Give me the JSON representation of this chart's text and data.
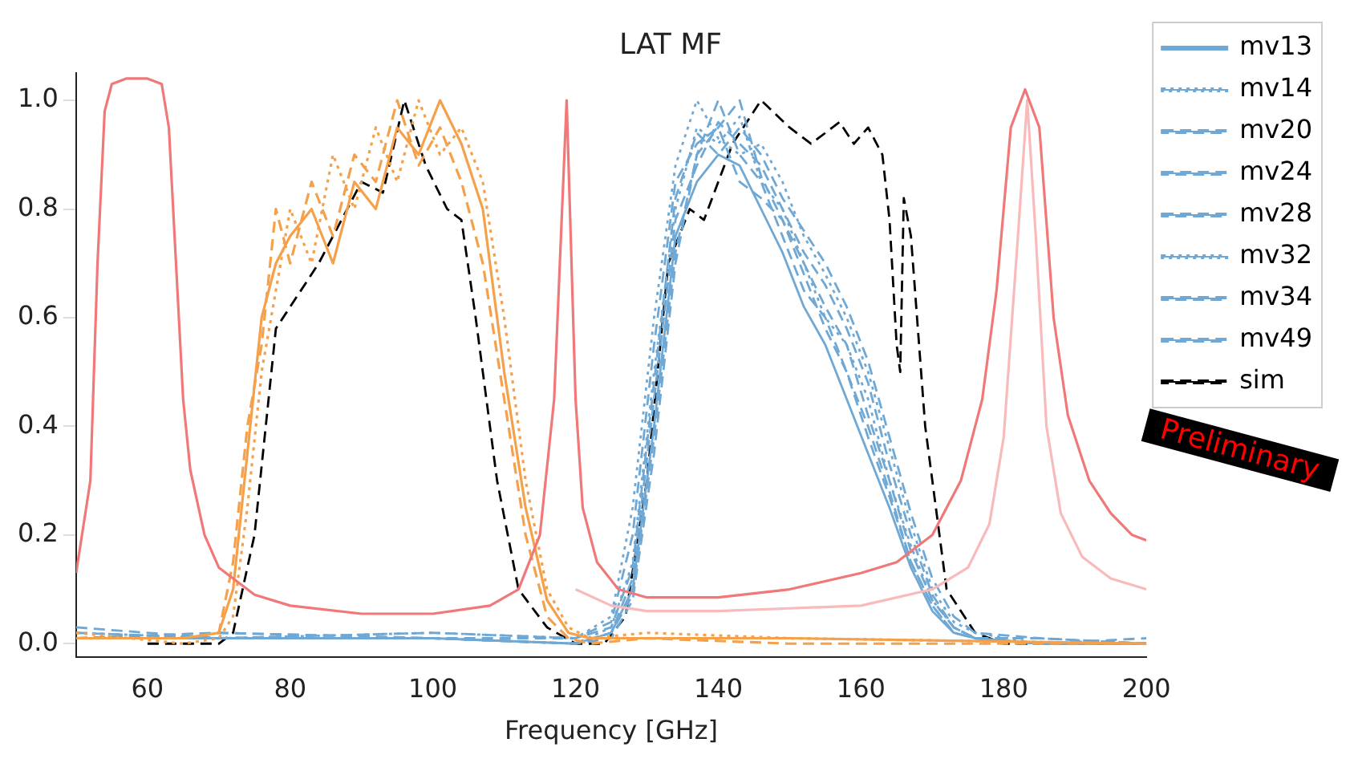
{
  "chart_data": {
    "type": "line",
    "title": "LAT MF",
    "xlabel": "Frequency [GHz]",
    "annotations": [
      "Preliminary"
    ],
    "xlim": [
      50,
      200
    ],
    "xticks": [
      60,
      80,
      100,
      120,
      140,
      160,
      180,
      200
    ],
    "ylim": [
      -0.025,
      1.05
    ],
    "yticks": [
      {
        "value": 0,
        "label": "0.0"
      },
      {
        "value": 0.2,
        "label": "0.2"
      },
      {
        "value": 0.4,
        "label": "0.4"
      },
      {
        "value": 0.6,
        "label": "0.6"
      },
      {
        "value": 0.8,
        "label": "0.8"
      },
      {
        "value": 1,
        "label": "1.0"
      }
    ],
    "grid": false,
    "legend": "right",
    "marker": "none",
    "series": [
      {
        "color": "#f07878",
        "line_style": "solid",
        "x": [
          50,
          52,
          53,
          54,
          55,
          57,
          60,
          62,
          63,
          64,
          65,
          66,
          68,
          70,
          75,
          80,
          90,
          100,
          108,
          112,
          115,
          117,
          118.75,
          120,
          121,
          123,
          126,
          130,
          140,
          150,
          160,
          165,
          170,
          174,
          177,
          179,
          181,
          183,
          185,
          187,
          189,
          192,
          195,
          198,
          200
        ],
        "values": [
          0.13,
          0.3,
          0.7,
          0.98,
          1.03,
          1.04,
          1.04,
          1.03,
          0.95,
          0.7,
          0.45,
          0.32,
          0.2,
          0.14,
          0.09,
          0.07,
          0.055,
          0.055,
          0.07,
          0.1,
          0.2,
          0.45,
          1.0,
          0.45,
          0.25,
          0.15,
          0.1,
          0.085,
          0.085,
          0.1,
          0.13,
          0.15,
          0.2,
          0.3,
          0.45,
          0.65,
          0.95,
          1.02,
          0.95,
          0.6,
          0.42,
          0.3,
          0.24,
          0.2,
          0.19
        ]
      },
      {
        "color": "#f8baba",
        "line_style": "solid",
        "x": [
          120,
          125,
          130,
          140,
          150,
          160,
          170,
          175,
          178,
          180,
          182,
          183.3,
          184.5,
          186,
          188,
          191,
          195,
          200
        ],
        "values": [
          0.1,
          0.07,
          0.06,
          0.06,
          0.065,
          0.07,
          0.1,
          0.14,
          0.22,
          0.38,
          0.75,
          1.0,
          0.75,
          0.4,
          0.24,
          0.16,
          0.12,
          0.1
        ]
      },
      {
        "color": "#f5a04a",
        "line_style": "solid",
        "x": [
          50,
          65,
          70,
          72,
          74,
          76,
          78,
          80,
          83,
          86,
          89,
          92,
          95,
          98,
          101,
          104,
          107,
          110,
          113,
          116,
          119,
          122,
          130,
          150,
          200
        ],
        "values": [
          0.01,
          0.01,
          0.02,
          0.1,
          0.35,
          0.6,
          0.7,
          0.75,
          0.8,
          0.7,
          0.85,
          0.8,
          0.95,
          0.9,
          1.0,
          0.92,
          0.8,
          0.5,
          0.25,
          0.08,
          0.02,
          0.01,
          0.01,
          0.01,
          0
        ]
      },
      {
        "color": "#f5a04a",
        "line_style": "dotted",
        "x": [
          50,
          65,
          70,
          72,
          74,
          76,
          78,
          80,
          83,
          86,
          89,
          92,
          95,
          98,
          101,
          104,
          107,
          110,
          113,
          116,
          119,
          122,
          130,
          150,
          200
        ],
        "values": [
          0.02,
          0,
          0.01,
          0.05,
          0.25,
          0.5,
          0.65,
          0.8,
          0.7,
          0.9,
          0.8,
          0.95,
          0.85,
          1.0,
          0.9,
          0.95,
          0.85,
          0.6,
          0.3,
          0.1,
          0.03,
          0.01,
          0.02,
          0.01,
          0
        ]
      },
      {
        "color": "#f5a04a",
        "line_style": "dashed",
        "x": [
          50,
          65,
          70,
          72,
          74,
          76,
          78,
          80,
          83,
          86,
          89,
          92,
          95,
          98,
          101,
          104,
          107,
          110,
          113,
          116,
          119,
          122,
          130,
          150,
          200
        ],
        "values": [
          0.01,
          0.01,
          0.02,
          0.15,
          0.4,
          0.55,
          0.8,
          0.7,
          0.85,
          0.75,
          0.9,
          0.85,
          1.0,
          0.88,
          0.95,
          0.85,
          0.7,
          0.45,
          0.2,
          0.05,
          0.01,
          0,
          0.01,
          0,
          0
        ]
      },
      {
        "name": "mv13",
        "color": "#6fa8d4",
        "line_style": "solid",
        "x": [
          50,
          70,
          100,
          120,
          125,
          128,
          131,
          134,
          137,
          140,
          143,
          146,
          149,
          152,
          155,
          158,
          161,
          164,
          167,
          170,
          173,
          176,
          185,
          200
        ],
        "values": [
          0.01,
          0.01,
          0.01,
          0,
          0.02,
          0.1,
          0.4,
          0.75,
          0.85,
          0.9,
          0.88,
          0.8,
          0.72,
          0.62,
          0.55,
          0.45,
          0.35,
          0.25,
          0.14,
          0.06,
          0.02,
          0.01,
          0,
          0
        ]
      },
      {
        "name": "mv14",
        "color": "#6fa8d4",
        "line_style": "dotted",
        "x": [
          50,
          70,
          100,
          120,
          125,
          128,
          131,
          134,
          137,
          140,
          143,
          146,
          149,
          152,
          155,
          158,
          161,
          164,
          167,
          170,
          173,
          176,
          185,
          200
        ],
        "values": [
          0.02,
          0.01,
          0.01,
          0,
          0.03,
          0.15,
          0.5,
          0.8,
          0.95,
          0.92,
          0.97,
          0.85,
          0.8,
          0.7,
          0.6,
          0.55,
          0.45,
          0.3,
          0.18,
          0.08,
          0.03,
          0.01,
          0,
          0
        ]
      },
      {
        "name": "mv20",
        "color": "#6fa8d4",
        "line_style": "dashed",
        "x": [
          50,
          70,
          100,
          120,
          125,
          128,
          131,
          134,
          137,
          140,
          143,
          146,
          149,
          152,
          155,
          158,
          161,
          164,
          167,
          170,
          173,
          176,
          185,
          200
        ],
        "values": [
          0.01,
          0.02,
          0.01,
          0,
          0.01,
          0.08,
          0.35,
          0.7,
          0.9,
          1.0,
          0.9,
          0.85,
          0.75,
          0.65,
          0.6,
          0.5,
          0.4,
          0.28,
          0.15,
          0.07,
          0.02,
          0.01,
          0,
          0
        ]
      },
      {
        "name": "mv24",
        "color": "#6fa8d4",
        "line_style": "dashed",
        "x": [
          50,
          70,
          100,
          120,
          125,
          128,
          131,
          134,
          137,
          140,
          143,
          146,
          149,
          152,
          155,
          158,
          161,
          164,
          167,
          170,
          173,
          176,
          185,
          200
        ],
        "values": [
          0.01,
          0.01,
          0.02,
          0.01,
          0.04,
          0.2,
          0.55,
          0.85,
          0.92,
          0.95,
          0.85,
          0.82,
          0.78,
          0.7,
          0.62,
          0.55,
          0.42,
          0.3,
          0.17,
          0.08,
          0.03,
          0.01,
          0.01,
          0
        ]
      },
      {
        "name": "mv28",
        "color": "#6fa8d4",
        "line_style": "dashed",
        "x": [
          50,
          70,
          100,
          120,
          125,
          128,
          131,
          134,
          137,
          140,
          143,
          146,
          149,
          152,
          155,
          158,
          161,
          164,
          167,
          170,
          173,
          176,
          185,
          200
        ],
        "values": [
          0.02,
          0.01,
          0.01,
          0,
          0.02,
          0.12,
          0.45,
          0.78,
          0.88,
          0.96,
          0.92,
          0.88,
          0.8,
          0.72,
          0.66,
          0.58,
          0.48,
          0.33,
          0.2,
          0.09,
          0.03,
          0.01,
          0,
          0.01
        ]
      },
      {
        "name": "mv32",
        "color": "#6fa8d4",
        "line_style": "dotted",
        "x": [
          50,
          70,
          100,
          120,
          125,
          128,
          131,
          134,
          137,
          140,
          143,
          146,
          149,
          152,
          155,
          158,
          161,
          164,
          167,
          170,
          173,
          176,
          185,
          200
        ],
        "values": [
          0.01,
          0.01,
          0.02,
          0.01,
          0.05,
          0.25,
          0.6,
          0.88,
          1.0,
          0.93,
          0.9,
          0.92,
          0.85,
          0.75,
          0.68,
          0.6,
          0.5,
          0.36,
          0.22,
          0.1,
          0.04,
          0.02,
          0,
          0
        ]
      },
      {
        "name": "mv34",
        "color": "#6fa8d4",
        "line_style": "dashed",
        "x": [
          50,
          70,
          100,
          120,
          125,
          128,
          131,
          134,
          137,
          140,
          143,
          146,
          149,
          152,
          155,
          158,
          161,
          164,
          167,
          170,
          173,
          176,
          185,
          200
        ],
        "values": [
          0.03,
          0.01,
          0.01,
          0,
          0.02,
          0.09,
          0.38,
          0.72,
          0.9,
          0.95,
          1.0,
          0.86,
          0.78,
          0.68,
          0.58,
          0.5,
          0.38,
          0.27,
          0.15,
          0.07,
          0.02,
          0.01,
          0,
          0
        ]
      },
      {
        "name": "mv49",
        "color": "#6fa8d4",
        "line_style": "dashed",
        "x": [
          50,
          70,
          100,
          120,
          125,
          128,
          131,
          134,
          137,
          140,
          143,
          146,
          149,
          152,
          155,
          158,
          161,
          164,
          167,
          170,
          173,
          176,
          185,
          200
        ],
        "values": [
          0.01,
          0.02,
          0.01,
          0.01,
          0.03,
          0.14,
          0.48,
          0.82,
          0.94,
          0.9,
          0.95,
          0.9,
          0.82,
          0.76,
          0.7,
          0.62,
          0.52,
          0.38,
          0.24,
          0.12,
          0.05,
          0.02,
          0.01,
          0
        ]
      },
      {
        "name": "sim",
        "color": "#000000",
        "line_style": "dashed",
        "x": [
          60,
          70,
          72,
          75,
          78,
          80,
          84,
          88,
          90,
          93,
          96,
          99,
          102,
          104,
          106,
          109,
          112,
          116,
          120,
          124,
          127,
          130,
          133,
          136,
          138,
          142,
          146,
          150,
          153,
          157,
          159,
          161,
          163,
          164,
          165,
          165.5,
          166,
          167,
          169,
          172,
          176,
          180,
          200
        ],
        "values": [
          0,
          0,
          0.02,
          0.2,
          0.58,
          0.62,
          0.7,
          0.8,
          0.85,
          0.83,
          1.0,
          0.88,
          0.8,
          0.78,
          0.6,
          0.3,
          0.1,
          0.03,
          0,
          0,
          0.05,
          0.3,
          0.7,
          0.8,
          0.78,
          0.92,
          1.0,
          0.95,
          0.92,
          0.96,
          0.92,
          0.95,
          0.9,
          0.78,
          0.55,
          0.5,
          0.82,
          0.75,
          0.4,
          0.1,
          0.02,
          0,
          0
        ]
      }
    ]
  }
}
